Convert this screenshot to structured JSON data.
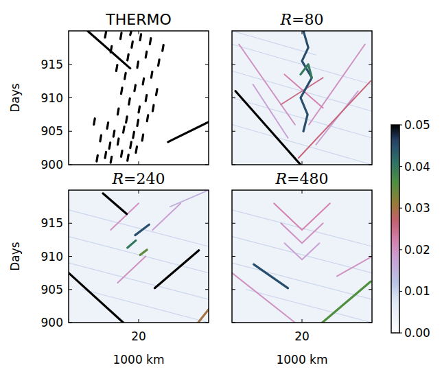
{
  "chart_data": [
    {
      "type": "heatmap",
      "title": "THERMO",
      "ylabel": "Days",
      "xlim": [
        10,
        30
      ],
      "ylim": [
        900,
        920
      ],
      "xticks": [
        20
      ],
      "yticks": [
        900,
        905,
        910,
        915
      ],
      "tick_labels": "y",
      "background": 0,
      "streaks": [
        {
          "x": [
            12.7,
            18.8
          ],
          "days": [
            920,
            914.4
          ],
          "value": 0.05
        },
        {
          "x": [
            24.2,
            30
          ],
          "days": [
            903.4,
            906.4
          ],
          "value": 0.05
        },
        {
          "x": [
            14,
            14.15
          ],
          "days": [
            900.5,
            901.4
          ],
          "value": 0.05
        },
        {
          "x": [
            15.2,
            15.35
          ],
          "days": [
            901,
            901.9
          ],
          "value": 0.05
        },
        {
          "x": [
            16,
            16.15
          ],
          "days": [
            900.3,
            901.2
          ],
          "value": 0.05
        },
        {
          "x": [
            17.5,
            17.65
          ],
          "days": [
            901.2,
            902.1
          ],
          "value": 0.05
        },
        {
          "x": [
            18.4,
            18.55
          ],
          "days": [
            900.6,
            901.5
          ],
          "value": 0.05
        },
        {
          "x": [
            15.8,
            15.95
          ],
          "days": [
            902.4,
            903.3
          ],
          "value": 0.05
        },
        {
          "x": [
            17,
            17.15
          ],
          "days": [
            903,
            903.9
          ],
          "value": 0.05
        },
        {
          "x": [
            18.8,
            18.95
          ],
          "days": [
            902.5,
            903.4
          ],
          "value": 0.05
        },
        {
          "x": [
            19.6,
            19.75
          ],
          "days": [
            901.8,
            902.7
          ],
          "value": 0.05
        },
        {
          "x": [
            16.4,
            16.55
          ],
          "days": [
            904.2,
            905.1
          ],
          "value": 0.05
        },
        {
          "x": [
            17.8,
            17.95
          ],
          "days": [
            904.8,
            905.7
          ],
          "value": 0.05
        },
        {
          "x": [
            19.2,
            19.35
          ],
          "days": [
            904,
            904.9
          ],
          "value": 0.05
        },
        {
          "x": [
            20.5,
            20.65
          ],
          "days": [
            903.6,
            904.5
          ],
          "value": 0.05
        },
        {
          "x": [
            15.5,
            15.65
          ],
          "days": [
            905.4,
            906.3
          ],
          "value": 0.05
        },
        {
          "x": [
            18.2,
            18.35
          ],
          "days": [
            906.3,
            907.2
          ],
          "value": 0.05
        },
        {
          "x": [
            19.8,
            19.95
          ],
          "days": [
            905.8,
            906.7
          ],
          "value": 0.05
        },
        {
          "x": [
            21.2,
            21.35
          ],
          "days": [
            906.5,
            907.4
          ],
          "value": 0.05
        },
        {
          "x": [
            17,
            17.15
          ],
          "days": [
            907.5,
            908.4
          ],
          "value": 0.05
        },
        {
          "x": [
            20,
            20.15
          ],
          "days": [
            907.8,
            908.7
          ],
          "value": 0.05
        },
        {
          "x": [
            22,
            22.15
          ],
          "days": [
            908,
            908.9
          ],
          "value": 0.05
        },
        {
          "x": [
            18.6,
            18.75
          ],
          "days": [
            909,
            909.9
          ],
          "value": 0.05
        },
        {
          "x": [
            21,
            21.15
          ],
          "days": [
            909.5,
            910.4
          ],
          "value": 0.05
        },
        {
          "x": [
            17.5,
            17.65
          ],
          "days": [
            910.6,
            911.5
          ],
          "value": 0.05
        },
        {
          "x": [
            19.4,
            19.55
          ],
          "days": [
            911,
            911.9
          ],
          "value": 0.05
        },
        {
          "x": [
            22.5,
            22.65
          ],
          "days": [
            910.4,
            911.3
          ],
          "value": 0.05
        },
        {
          "x": [
            20.6,
            20.75
          ],
          "days": [
            912,
            912.9
          ],
          "value": 0.05
        },
        {
          "x": [
            18,
            18.15
          ],
          "days": [
            912.8,
            913.7
          ],
          "value": 0.05
        },
        {
          "x": [
            21.8,
            21.95
          ],
          "days": [
            913,
            913.9
          ],
          "value": 0.05
        },
        {
          "x": [
            16.8,
            16.95
          ],
          "days": [
            914,
            914.9
          ],
          "value": 0.05
        },
        {
          "x": [
            19.8,
            19.95
          ],
          "days": [
            914.5,
            915.4
          ],
          "value": 0.05
        },
        {
          "x": [
            22.8,
            22.95
          ],
          "days": [
            914.8,
            915.7
          ],
          "value": 0.05
        },
        {
          "x": [
            18.4,
            18.55
          ],
          "days": [
            915.6,
            916.5
          ],
          "value": 0.05
        },
        {
          "x": [
            21,
            21.15
          ],
          "days": [
            916,
            916.9
          ],
          "value": 0.05
        },
        {
          "x": [
            16,
            16.15
          ],
          "days": [
            916.8,
            917.7
          ],
          "value": 0.05
        },
        {
          "x": [
            19,
            19.15
          ],
          "days": [
            917.5,
            918.4
          ],
          "value": 0.05
        },
        {
          "x": [
            20.2,
            20.35
          ],
          "days": [
            918.6,
            919.5
          ],
          "value": 0.05
        },
        {
          "x": [
            17.4,
            17.55
          ],
          "days": [
            918.8,
            919.7
          ],
          "value": 0.05
        },
        {
          "x": [
            21.6,
            21.75
          ],
          "days": [
            918,
            918.9
          ],
          "value": 0.05
        },
        {
          "x": [
            15.2,
            15.35
          ],
          "days": [
            919,
            919.9
          ],
          "value": 0.05
        },
        {
          "x": [
            18.8,
            18.95
          ],
          "days": [
            919.4,
            920
          ],
          "value": 0.05
        },
        {
          "x": [
            23.4,
            23.55
          ],
          "days": [
            917,
            917.9
          ],
          "value": 0.05
        },
        {
          "x": [
            14.5,
            14.65
          ],
          "days": [
            903.5,
            904.4
          ],
          "value": 0.05
        },
        {
          "x": [
            13.6,
            13.75
          ],
          "days": [
            906,
            906.9
          ],
          "value": 0.05
        }
      ]
    },
    {
      "type": "heatmap",
      "title": "R=80",
      "xlim": [
        10,
        30
      ],
      "ylim": [
        900,
        920
      ],
      "xticks": [
        20
      ],
      "yticks": [
        900,
        905,
        910,
        915
      ],
      "tick_labels": false,
      "background": 0.004,
      "streaks": [
        {
          "x": [
            10,
            30
          ],
          "days": [
            918,
            912
          ],
          "value": 0.01
        },
        {
          "x": [
            10,
            30
          ],
          "days": [
            914,
            908
          ],
          "value": 0.01
        },
        {
          "x": [
            10,
            30
          ],
          "days": [
            910,
            904
          ],
          "value": 0.01
        },
        {
          "x": [
            10,
            30
          ],
          "days": [
            906,
            900
          ],
          "value": 0.01
        },
        {
          "x": [
            10,
            22
          ],
          "days": [
            920,
            916.4
          ],
          "value": 0.01
        },
        {
          "x": [
            19,
            11
          ],
          "days": [
            906,
            918
          ],
          "value": 0.02
        },
        {
          "x": [
            21,
            29
          ],
          "days": [
            906,
            918
          ],
          "value": 0.02
        },
        {
          "x": [
            18,
            13
          ],
          "days": [
            904,
            912
          ],
          "value": 0.018
        },
        {
          "x": [
            22,
            28
          ],
          "days": [
            903,
            911
          ],
          "value": 0.018
        },
        {
          "x": [
            17,
            23
          ],
          "days": [
            909,
            913
          ],
          "value": 0.025
        },
        {
          "x": [
            23,
            17.5
          ],
          "days": [
            908.5,
            913.5
          ],
          "value": 0.022
        },
        {
          "x": [
            10.5,
            19.8
          ],
          "days": [
            911,
            900
          ],
          "value": 0.05
        },
        {
          "x": [
            19.5,
            29.8
          ],
          "days": [
            901,
            912.5
          ],
          "value": 0.026
        },
        {
          "x": [
            20.2,
            20.8,
            19.8,
            21.4,
            20,
            20.9,
            20.2
          ],
          "days": [
            905,
            907.5,
            910,
            913,
            915.5,
            917.5,
            920
          ],
          "value": 0.045
        },
        {
          "x": [
            19.8,
            20.9,
            21.4
          ],
          "days": [
            913.5,
            915,
            913
          ],
          "value": 0.04
        }
      ]
    },
    {
      "type": "heatmap",
      "title": "R=240",
      "ylabel": "Days",
      "xlabel": "1000 km",
      "xlim": [
        10,
        30
      ],
      "ylim": [
        900,
        920
      ],
      "xticks": [
        20
      ],
      "yticks": [
        900,
        905,
        910,
        915
      ],
      "tick_labels": true,
      "background": 0.004,
      "streaks": [
        {
          "x": [
            10,
            30
          ],
          "days": [
            917,
            911.5
          ],
          "value": 0.01
        },
        {
          "x": [
            10,
            30
          ],
          "days": [
            913,
            907.5
          ],
          "value": 0.01
        },
        {
          "x": [
            10,
            30
          ],
          "days": [
            909,
            903.5
          ],
          "value": 0.01
        },
        {
          "x": [
            12,
            30
          ],
          "days": [
            905,
            900
          ],
          "value": 0.01
        },
        {
          "x": [
            16,
            20
          ],
          "days": [
            914,
            918
          ],
          "value": 0.02
        },
        {
          "x": [
            22,
            26
          ],
          "days": [
            914,
            918
          ],
          "value": 0.018
        },
        {
          "x": [
            17,
            21
          ],
          "days": [
            906,
            910
          ],
          "value": 0.02
        },
        {
          "x": [
            24.5,
            30
          ],
          "days": [
            917.5,
            920
          ],
          "value": 0.015
        },
        {
          "x": [
            14.9,
            18.3
          ],
          "days": [
            919.5,
            916.4
          ],
          "value": 0.05
        },
        {
          "x": [
            10,
            17.8
          ],
          "days": [
            907.5,
            900
          ],
          "value": 0.05
        },
        {
          "x": [
            22.3,
            28.6
          ],
          "days": [
            905.2,
            910.9
          ],
          "value": 0.05
        },
        {
          "x": [
            19.5,
            21.5
          ],
          "days": [
            913.2,
            914.8
          ],
          "value": 0.045
        },
        {
          "x": [
            18.4,
            19.6
          ],
          "days": [
            911.3,
            912.4
          ],
          "value": 0.04
        },
        {
          "x": [
            20.2,
            21.2
          ],
          "days": [
            910.2,
            911
          ],
          "value": 0.035
        },
        {
          "x": [
            28.5,
            30
          ],
          "days": [
            900,
            902
          ],
          "value": 0.03
        }
      ]
    },
    {
      "type": "heatmap",
      "title": "R=480",
      "xlabel": "1000 km",
      "xlim": [
        10,
        30
      ],
      "ylim": [
        900,
        920
      ],
      "xticks": [
        20
      ],
      "yticks": [
        900,
        905,
        910,
        915
      ],
      "tick_labels": "x",
      "background": 0.004,
      "streaks": [
        {
          "x": [
            10,
            30
          ],
          "days": [
            917,
            911.5
          ],
          "value": 0.01
        },
        {
          "x": [
            10,
            30
          ],
          "days": [
            913,
            907.5
          ],
          "value": 0.01
        },
        {
          "x": [
            10,
            30
          ],
          "days": [
            909,
            903.5
          ],
          "value": 0.01
        },
        {
          "x": [
            12,
            30
          ],
          "days": [
            905,
            900
          ],
          "value": 0.01
        },
        {
          "x": [
            16,
            20,
            24
          ],
          "days": [
            918,
            914,
            918
          ],
          "value": 0.022
        },
        {
          "x": [
            17,
            20,
            23
          ],
          "days": [
            915,
            912,
            915
          ],
          "value": 0.02
        },
        {
          "x": [
            17.5,
            20,
            22.5
          ],
          "days": [
            912,
            909.5,
            912
          ],
          "value": 0.018
        },
        {
          "x": [
            10,
            19
          ],
          "days": [
            907.5,
            900
          ],
          "value": 0.02
        },
        {
          "x": [
            25,
            30
          ],
          "days": [
            907,
            910
          ],
          "value": 0.02
        },
        {
          "x": [
            13.1,
            18
          ],
          "days": [
            908.8,
            905.2
          ],
          "value": 0.045
        },
        {
          "x": [
            22.9,
            29.8
          ],
          "days": [
            900,
            906.2
          ],
          "value": 0.036
        }
      ]
    }
  ],
  "colorbar": {
    "range": [
      0,
      0.05
    ],
    "ticks": [
      {
        "value": 0,
        "label": "0.00"
      },
      0.01,
      0.02,
      0.03,
      0.04,
      0.05
    ]
  }
}
